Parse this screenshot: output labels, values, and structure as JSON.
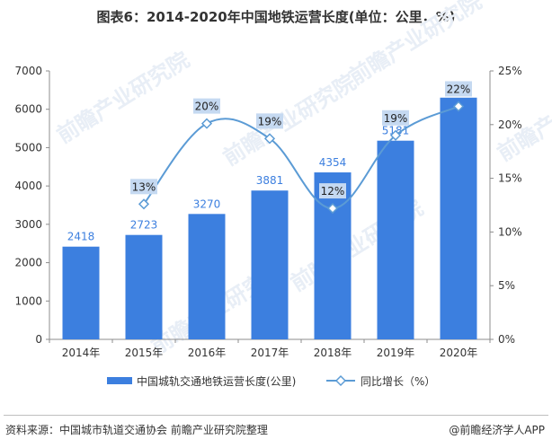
{
  "title": "图表6：2014-2020年中国地铁运营长度(单位：公里，%)",
  "footer": {
    "source": "资料来源：中国城市轨道交通协会 前瞻产业研究院整理",
    "brand": "@前瞻经济学人APP"
  },
  "watermark": "前瞻产业研究院",
  "colors": {
    "bar": "#3c7fdf",
    "line": "#5b9bd5",
    "marker_fill": "#ffffff",
    "callout": "#c5d9f1"
  },
  "chart_data": {
    "type": "bar",
    "categories": [
      "2014年",
      "2015年",
      "2016年",
      "2017年",
      "2018年",
      "2019年",
      "2020年"
    ],
    "series": [
      {
        "name": "中国城轨交通地铁运营长度(公里)",
        "type": "bar",
        "axis": "left",
        "values": [
          2418,
          2723,
          3270,
          3881,
          4354,
          5181,
          6303
        ],
        "labels": [
          "2418",
          "2723",
          "3270",
          "3881",
          "4354",
          "5181",
          "6303"
        ]
      },
      {
        "name": "同比增长（%）",
        "type": "line",
        "axis": "right",
        "values": [
          null,
          12.6,
          20.1,
          18.7,
          12.2,
          19.0,
          21.7
        ],
        "labels": [
          "",
          "13%",
          "20%",
          "19%",
          "12%",
          "19%",
          "22%"
        ]
      }
    ],
    "y_left": {
      "min": 0,
      "max": 7000,
      "ticks": [
        0,
        1000,
        2000,
        3000,
        4000,
        5000,
        6000,
        7000
      ],
      "tick_labels": [
        "0",
        "1000",
        "2000",
        "3000",
        "4000",
        "5000",
        "6000",
        "7000"
      ]
    },
    "y_right": {
      "min": 0,
      "max": 25,
      "ticks": [
        0,
        5,
        10,
        15,
        20,
        25
      ],
      "tick_labels": [
        "0%",
        "5%",
        "10%",
        "15%",
        "20%",
        "25%"
      ]
    },
    "legend_position": "bottom",
    "grid": false
  }
}
